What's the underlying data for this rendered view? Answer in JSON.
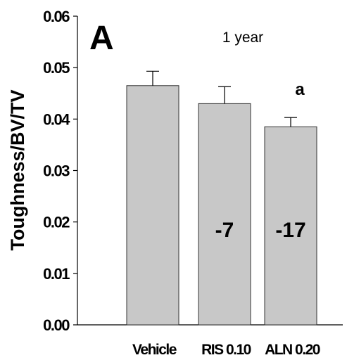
{
  "chart_data": {
    "type": "bar",
    "panel_label": "A",
    "subtitle": "1 year",
    "ylabel": "Toughness/BV/TV",
    "xlabel": "",
    "ylim": [
      0,
      0.06
    ],
    "yticks": [
      "0.00",
      "0.01",
      "0.02",
      "0.03",
      "0.04",
      "0.05",
      "0.06"
    ],
    "categories": [
      "Vehicle",
      "RIS 0.10",
      "ALN 0.20"
    ],
    "values": [
      0.0465,
      0.043,
      0.0385
    ],
    "errors": [
      0.0028,
      0.0033,
      0.0018
    ],
    "bar_annotations": [
      "",
      "-7",
      "-17"
    ],
    "significance": [
      "",
      "",
      "a"
    ],
    "grid": false,
    "bar_color": "#c8c8c8",
    "bar_edge_color": "#333333"
  }
}
